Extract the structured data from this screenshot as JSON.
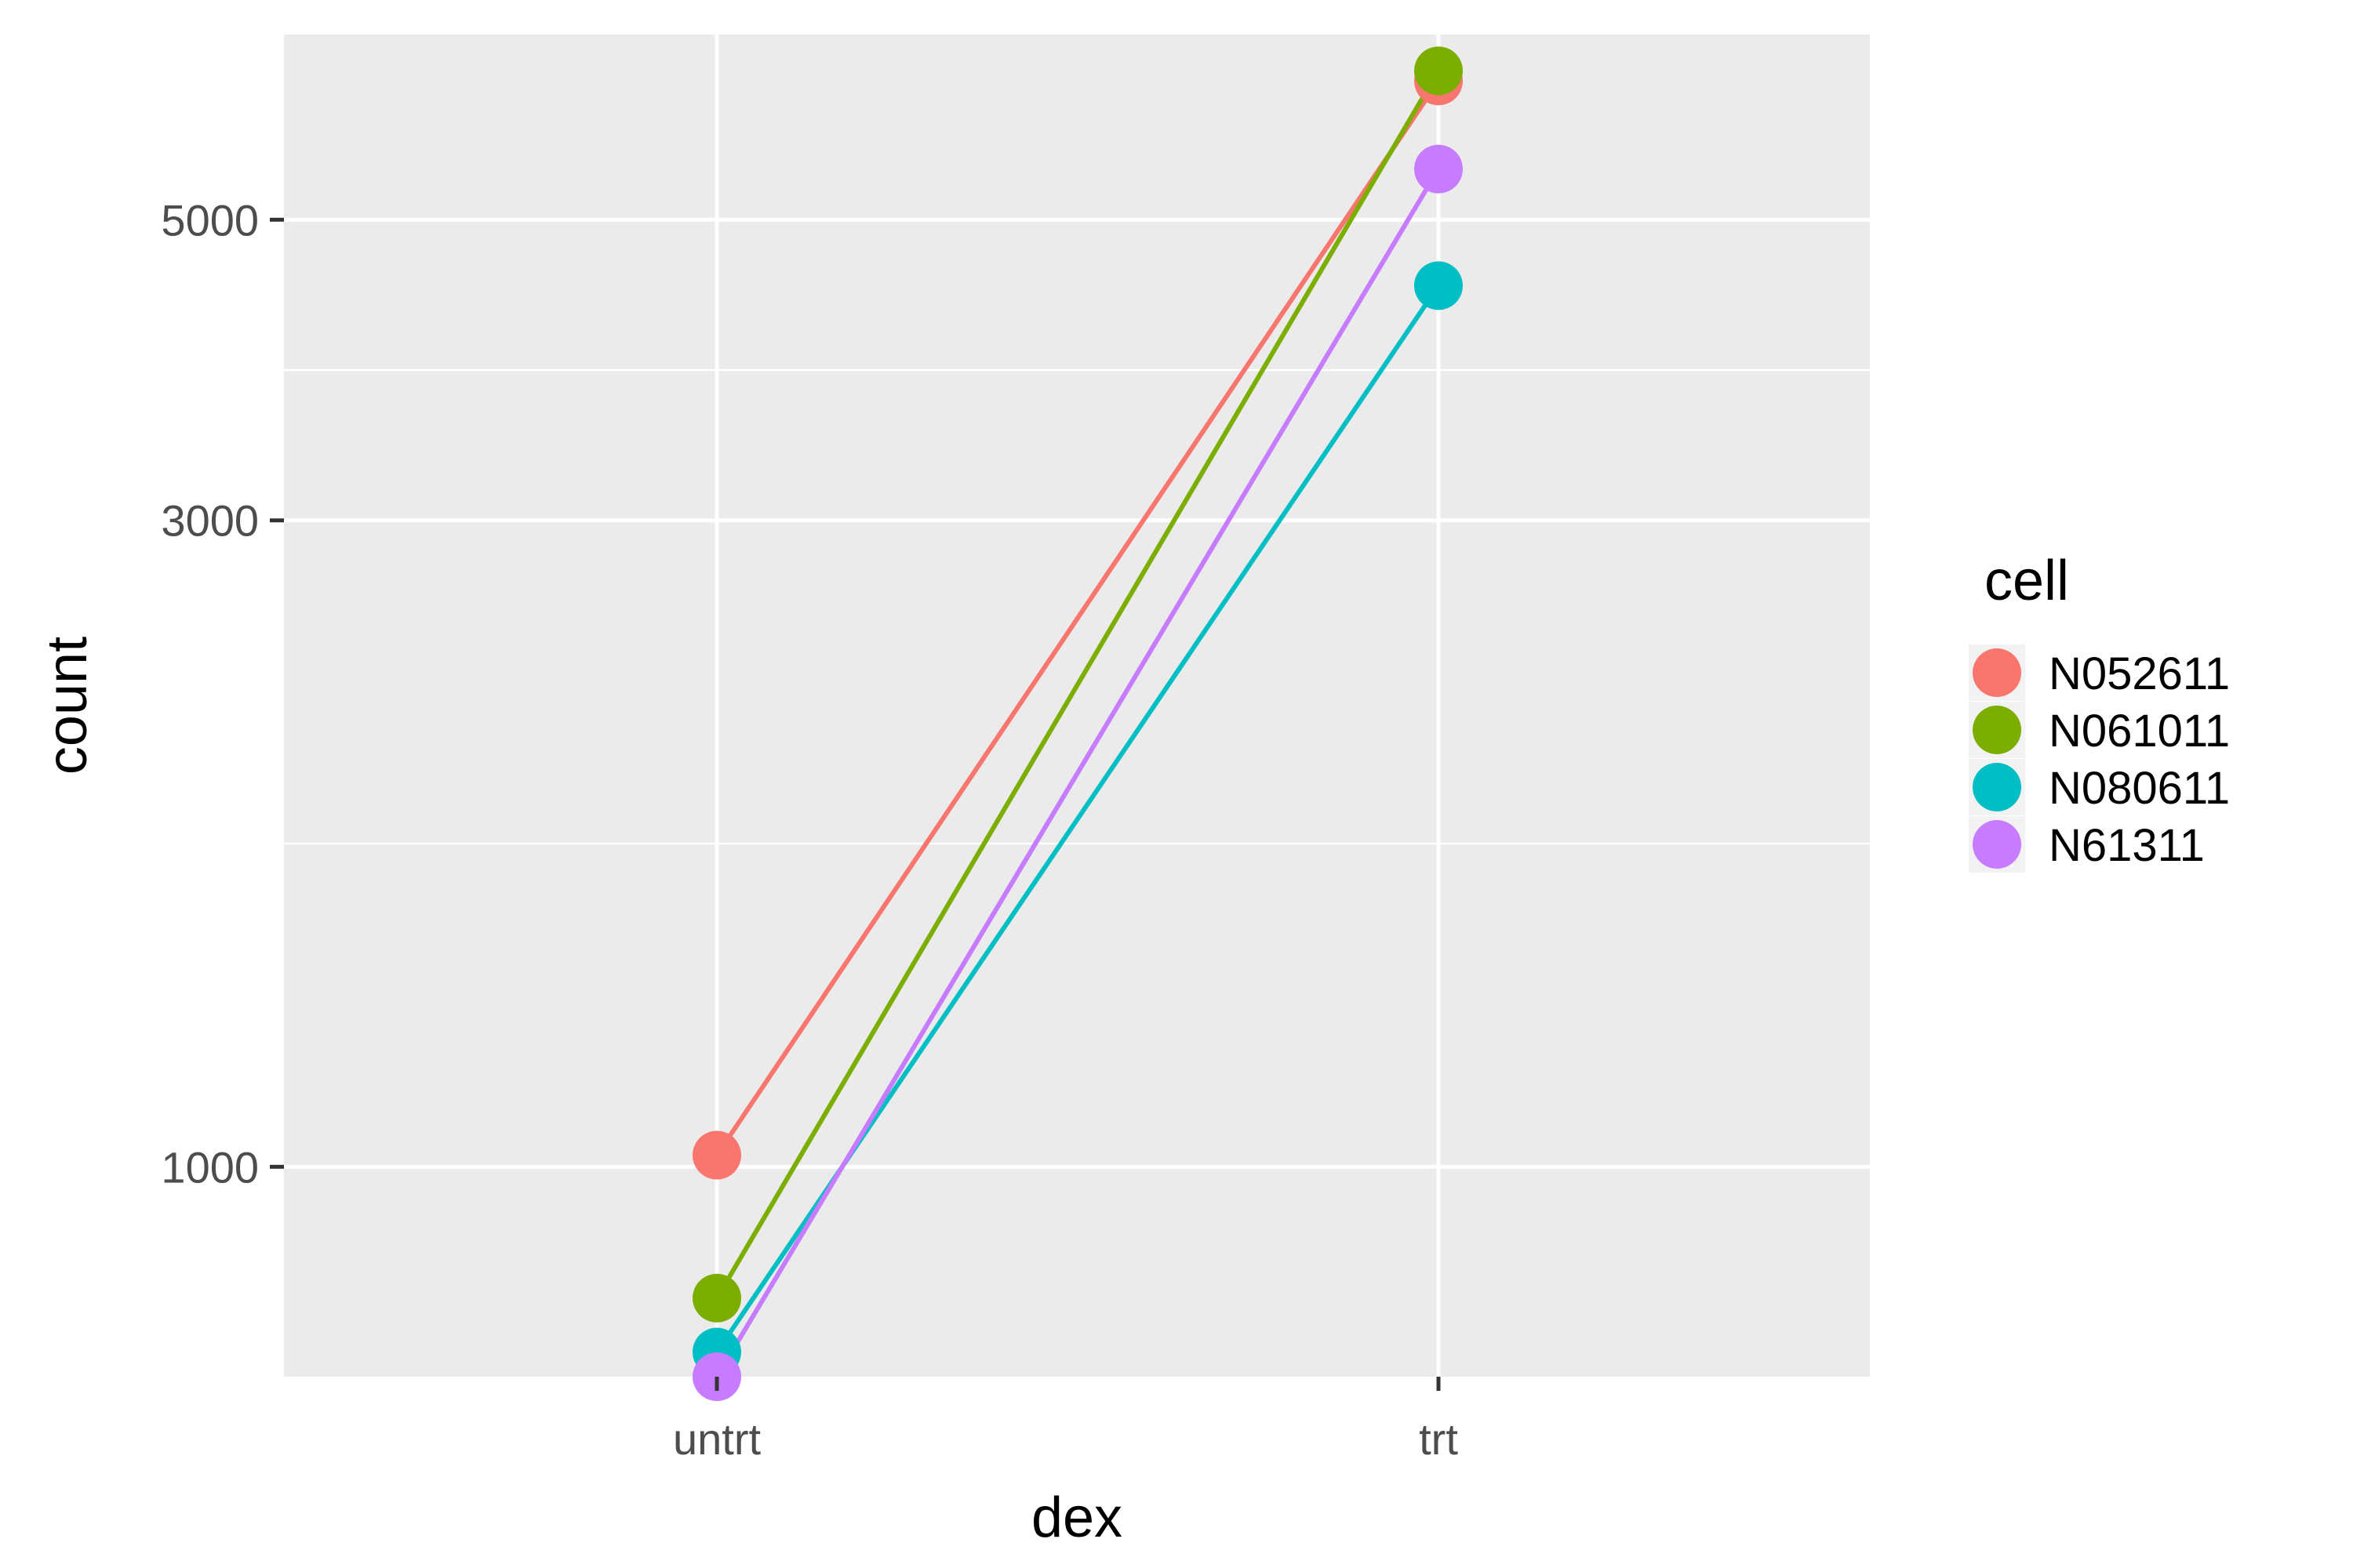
{
  "chart_data": {
    "type": "line",
    "categories": [
      "untrt",
      "trt"
    ],
    "xlabel": "dex",
    "ylabel": "count",
    "yscale": "log",
    "ylim": [
      700,
      6850
    ],
    "yticks": [
      1000,
      3000,
      5000
    ],
    "grid": true,
    "legend": {
      "title": "cell",
      "position": "right"
    },
    "series": [
      {
        "name": "N052611",
        "color": "#F8766D",
        "values": [
          1020,
          6330
        ]
      },
      {
        "name": "N061011",
        "color": "#7CAE00",
        "values": [
          800,
          6440
        ]
      },
      {
        "name": "N080611",
        "color": "#00BFC4",
        "values": [
          730,
          4470
        ]
      },
      {
        "name": "N61311",
        "color": "#C77CFF",
        "values": [
          700,
          5450
        ]
      }
    ]
  }
}
